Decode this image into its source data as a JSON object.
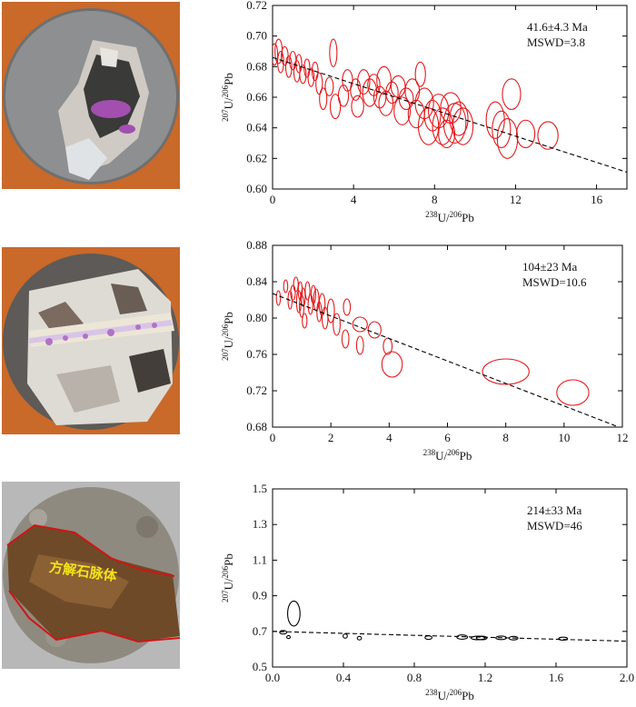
{
  "colors": {
    "photo_bg_orange": "#c9692a",
    "photo_bg_grey": "#b8b8b8",
    "ellipse_red": "#e31a1c",
    "ellipse_black": "#000000",
    "fit_line": "#000000"
  },
  "photos": [
    {
      "label": ""
    },
    {
      "label": ""
    },
    {
      "label": "方解石脉体"
    }
  ],
  "chart_data": [
    {
      "type": "scatter",
      "title": "",
      "annotation": [
        "41.6±4.3 Ma",
        "MSWD=3.8"
      ],
      "xlabel_parts": [
        "238",
        "U/",
        "206",
        "Pb"
      ],
      "ylabel_parts": [
        "207",
        "U/",
        "206",
        "Pb"
      ],
      "xlim": [
        0,
        17.5
      ],
      "ylim": [
        0.6,
        0.72
      ],
      "xticks": [
        0,
        4,
        8,
        12,
        16
      ],
      "xtick_labels": [
        "0",
        "4",
        "8",
        "12",
        "16"
      ],
      "yticks": [
        0.6,
        0.62,
        0.64,
        0.66,
        0.68,
        0.7,
        0.72
      ],
      "ytick_labels": [
        "0.60",
        "0.62",
        "0.64",
        "0.66",
        "0.68",
        "0.70",
        "0.72"
      ],
      "ellipse_color": "red",
      "fit_line": [
        [
          0,
          0.686
        ],
        [
          17.5,
          0.611
        ]
      ],
      "ellipses": [
        [
          0.1,
          0.688,
          0.15,
          0.007
        ],
        [
          0.3,
          0.69,
          0.18,
          0.008
        ],
        [
          0.4,
          0.683,
          0.15,
          0.007
        ],
        [
          0.6,
          0.687,
          0.17,
          0.006
        ],
        [
          0.8,
          0.68,
          0.15,
          0.007
        ],
        [
          1.0,
          0.684,
          0.16,
          0.006
        ],
        [
          1.2,
          0.677,
          0.15,
          0.007
        ],
        [
          1.3,
          0.682,
          0.14,
          0.006
        ],
        [
          1.5,
          0.675,
          0.16,
          0.006
        ],
        [
          1.7,
          0.679,
          0.14,
          0.006
        ],
        [
          1.9,
          0.673,
          0.15,
          0.006
        ],
        [
          2.1,
          0.677,
          0.15,
          0.006
        ],
        [
          2.3,
          0.669,
          0.16,
          0.007
        ],
        [
          2.5,
          0.659,
          0.18,
          0.007
        ],
        [
          2.8,
          0.667,
          0.2,
          0.006
        ],
        [
          3.0,
          0.689,
          0.18,
          0.009
        ],
        [
          3.1,
          0.654,
          0.25,
          0.008
        ],
        [
          3.5,
          0.661,
          0.25,
          0.007
        ],
        [
          3.7,
          0.671,
          0.25,
          0.007
        ],
        [
          4.1,
          0.665,
          0.25,
          0.007
        ],
        [
          4.2,
          0.654,
          0.3,
          0.007
        ],
        [
          4.5,
          0.67,
          0.3,
          0.008
        ],
        [
          4.8,
          0.663,
          0.35,
          0.009
        ],
        [
          5.0,
          0.668,
          0.3,
          0.007
        ],
        [
          5.3,
          0.66,
          0.3,
          0.007
        ],
        [
          5.5,
          0.671,
          0.35,
          0.009
        ],
        [
          5.6,
          0.656,
          0.35,
          0.008
        ],
        [
          5.9,
          0.663,
          0.3,
          0.007
        ],
        [
          6.2,
          0.667,
          0.35,
          0.007
        ],
        [
          6.4,
          0.651,
          0.4,
          0.009
        ],
        [
          6.6,
          0.659,
          0.35,
          0.007
        ],
        [
          6.9,
          0.664,
          0.35,
          0.008
        ],
        [
          7.1,
          0.649,
          0.4,
          0.009
        ],
        [
          7.3,
          0.675,
          0.25,
          0.008
        ],
        [
          7.5,
          0.656,
          0.45,
          0.01
        ],
        [
          7.7,
          0.641,
          0.5,
          0.012
        ],
        [
          7.9,
          0.648,
          0.4,
          0.01
        ],
        [
          8.2,
          0.651,
          0.5,
          0.011
        ],
        [
          8.4,
          0.641,
          0.5,
          0.012
        ],
        [
          8.6,
          0.636,
          0.4,
          0.009
        ],
        [
          8.8,
          0.653,
          0.5,
          0.01
        ],
        [
          9.0,
          0.643,
          0.55,
          0.013
        ],
        [
          9.2,
          0.646,
          0.45,
          0.011
        ],
        [
          9.4,
          0.641,
          0.5,
          0.012
        ],
        [
          11.0,
          0.645,
          0.45,
          0.012
        ],
        [
          11.3,
          0.639,
          0.45,
          0.012
        ],
        [
          11.6,
          0.633,
          0.5,
          0.013
        ],
        [
          11.8,
          0.662,
          0.45,
          0.01
        ],
        [
          12.5,
          0.636,
          0.45,
          0.009
        ],
        [
          13.6,
          0.635,
          0.5,
          0.009
        ]
      ]
    },
    {
      "type": "scatter",
      "title": "",
      "annotation": [
        "104±23 Ma",
        "MSWD=10.6"
      ],
      "xlabel_parts": [
        "238",
        "U/",
        "206",
        "Pb"
      ],
      "ylabel_parts": [
        "207",
        "U/",
        "206",
        "Pb"
      ],
      "xlim": [
        0,
        12
      ],
      "ylim": [
        0.68,
        0.88
      ],
      "xticks": [
        0,
        2,
        4,
        6,
        8,
        10,
        12
      ],
      "xtick_labels": [
        "0",
        "2",
        "4",
        "6",
        "8",
        "10",
        "12"
      ],
      "yticks": [
        0.68,
        0.72,
        0.76,
        0.8,
        0.84,
        0.88
      ],
      "ytick_labels": [
        "0.68",
        "0.72",
        "0.76",
        "0.80",
        "0.84",
        "0.88"
      ],
      "ellipse_color": "red",
      "fit_line": [
        [
          0,
          0.827
        ],
        [
          11.8,
          0.681
        ]
      ],
      "ellipses": [
        [
          0.2,
          0.822,
          0.07,
          0.008
        ],
        [
          0.45,
          0.835,
          0.07,
          0.007
        ],
        [
          0.6,
          0.82,
          0.07,
          0.01
        ],
        [
          0.7,
          0.828,
          0.08,
          0.008
        ],
        [
          0.8,
          0.837,
          0.08,
          0.008
        ],
        [
          0.9,
          0.818,
          0.08,
          0.012
        ],
        [
          0.95,
          0.83,
          0.07,
          0.01
        ],
        [
          1.0,
          0.813,
          0.08,
          0.012
        ],
        [
          1.05,
          0.823,
          0.07,
          0.01
        ],
        [
          1.1,
          0.797,
          0.08,
          0.008
        ],
        [
          1.2,
          0.83,
          0.08,
          0.01
        ],
        [
          1.3,
          0.815,
          0.08,
          0.011
        ],
        [
          1.4,
          0.826,
          0.08,
          0.01
        ],
        [
          1.5,
          0.82,
          0.09,
          0.012
        ],
        [
          1.6,
          0.807,
          0.08,
          0.011
        ],
        [
          1.7,
          0.815,
          0.1,
          0.012
        ],
        [
          1.8,
          0.8,
          0.1,
          0.012
        ],
        [
          2.0,
          0.808,
          0.12,
          0.013
        ],
        [
          2.2,
          0.793,
          0.12,
          0.012
        ],
        [
          2.5,
          0.777,
          0.12,
          0.01
        ],
        [
          2.55,
          0.812,
          0.12,
          0.009
        ],
        [
          3.0,
          0.793,
          0.25,
          0.008
        ],
        [
          3.0,
          0.77,
          0.12,
          0.01
        ],
        [
          3.5,
          0.787,
          0.22,
          0.009
        ],
        [
          3.95,
          0.769,
          0.15,
          0.009
        ],
        [
          4.1,
          0.749,
          0.35,
          0.014
        ],
        [
          8.0,
          0.741,
          0.8,
          0.014
        ],
        [
          10.3,
          0.718,
          0.55,
          0.014
        ]
      ]
    },
    {
      "type": "scatter",
      "title": "",
      "annotation": [
        "214±33 Ma",
        "MSWD=46"
      ],
      "xlabel_parts": [
        "238",
        "U/",
        "206",
        "Pb"
      ],
      "ylabel_parts": [
        "207",
        "U/",
        "206",
        "Pb"
      ],
      "xlim": [
        0,
        2.0
      ],
      "ylim": [
        0.5,
        1.5
      ],
      "xticks": [
        0.0,
        0.4,
        0.8,
        1.2,
        1.6,
        2.0
      ],
      "xtick_labels": [
        "0.0",
        "0.4",
        "0.8",
        "1.2",
        "1.6",
        "2.0"
      ],
      "yticks": [
        0.5,
        0.7,
        0.9,
        1.1,
        1.3,
        1.5
      ],
      "ytick_labels": [
        "0.5",
        "0.7",
        "0.9",
        "1.1",
        "1.3",
        "1.5"
      ],
      "ellipse_color": "black",
      "fit_line": [
        [
          0,
          0.7
        ],
        [
          2.0,
          0.645
        ]
      ],
      "ellipses": [
        [
          0.06,
          0.695,
          0.02,
          0.01
        ],
        [
          0.09,
          0.668,
          0.01,
          0.008
        ],
        [
          0.12,
          0.8,
          0.035,
          0.07
        ],
        [
          0.41,
          0.674,
          0.012,
          0.012
        ],
        [
          0.49,
          0.662,
          0.012,
          0.01
        ],
        [
          0.88,
          0.665,
          0.02,
          0.01
        ],
        [
          1.07,
          0.668,
          0.03,
          0.012
        ],
        [
          1.16,
          0.663,
          0.04,
          0.01
        ],
        [
          1.18,
          0.663,
          0.03,
          0.01
        ],
        [
          1.29,
          0.664,
          0.03,
          0.01
        ],
        [
          1.36,
          0.662,
          0.025,
          0.01
        ],
        [
          1.64,
          0.659,
          0.025,
          0.008
        ]
      ]
    }
  ]
}
